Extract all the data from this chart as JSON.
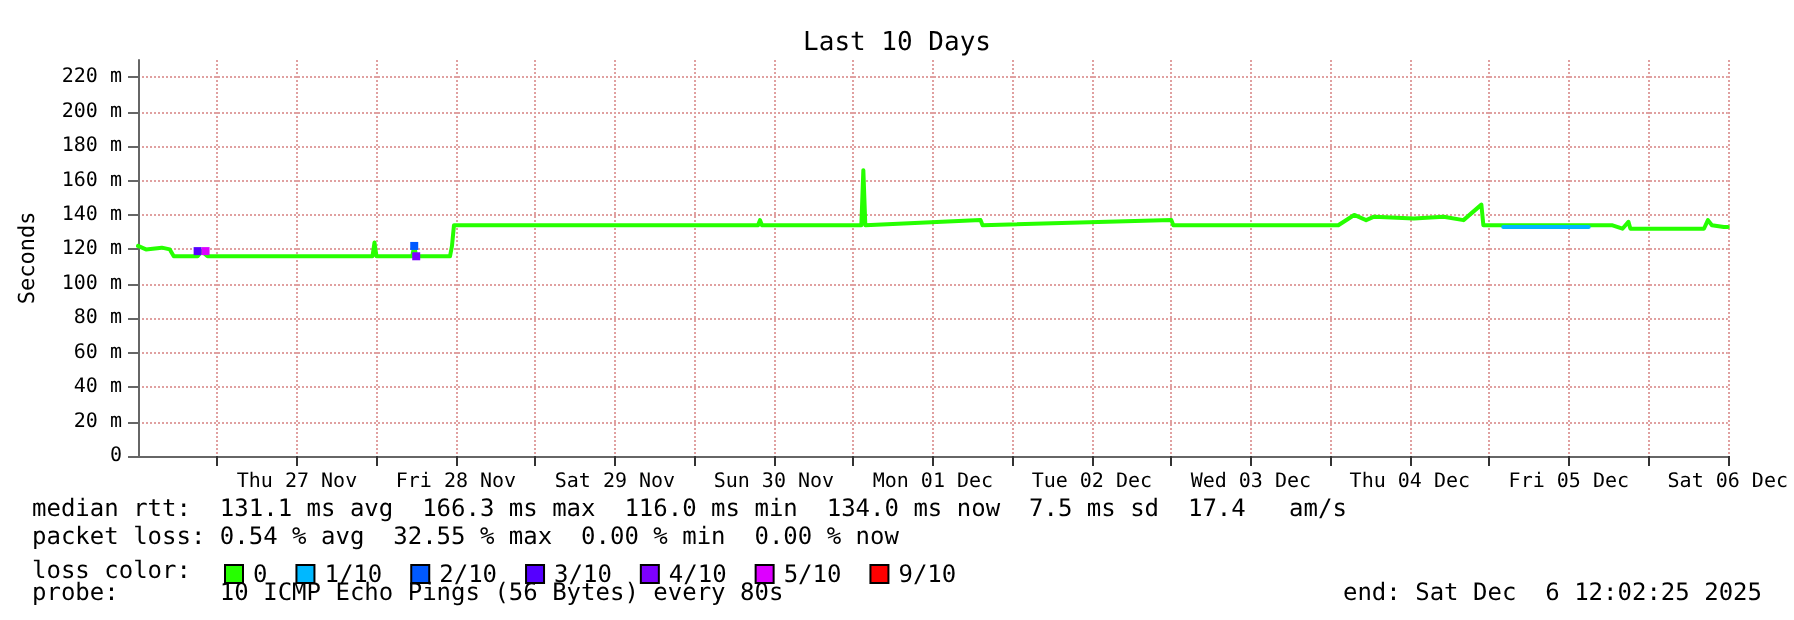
{
  "chart_data": {
    "type": "line",
    "title": "Last 10 Days",
    "ylabel": "Seconds",
    "legend_title": "loss color:",
    "xlim": [
      "2025-11-26T12:00",
      "2025-12-06T12:00"
    ],
    "xticks": [
      {
        "value": "2025-11-27T00:00",
        "label": null
      },
      {
        "value": "2025-11-27T12:00",
        "label": "Thu 27 Nov"
      },
      {
        "value": "2025-11-28T00:00",
        "label": null
      },
      {
        "value": "2025-11-28T12:00",
        "label": "Fri 28 Nov"
      },
      {
        "value": "2025-11-29T00:00",
        "label": null
      },
      {
        "value": "2025-11-29T12:00",
        "label": "Sat 29 Nov"
      },
      {
        "value": "2025-11-30T00:00",
        "label": null
      },
      {
        "value": "2025-11-30T12:00",
        "label": "Sun 30 Nov"
      },
      {
        "value": "2025-12-01T00:00",
        "label": null
      },
      {
        "value": "2025-12-01T12:00",
        "label": "Mon 01 Dec"
      },
      {
        "value": "2025-12-02T00:00",
        "label": null
      },
      {
        "value": "2025-12-02T12:00",
        "label": "Tue 02 Dec"
      },
      {
        "value": "2025-12-03T00:00",
        "label": null
      },
      {
        "value": "2025-12-03T12:00",
        "label": "Wed 03 Dec"
      },
      {
        "value": "2025-12-04T00:00",
        "label": null
      },
      {
        "value": "2025-12-04T12:00",
        "label": "Thu 04 Dec"
      },
      {
        "value": "2025-12-05T00:00",
        "label": null
      },
      {
        "value": "2025-12-05T12:00",
        "label": "Fri 05 Dec"
      },
      {
        "value": "2025-12-06T00:00",
        "label": null
      },
      {
        "value": "2025-12-06T12:00",
        "label": "Sat 06 Dec"
      }
    ],
    "ylim": [
      0,
      230
    ],
    "yticks": [
      0,
      {
        "value": 20,
        "label": "20 m"
      },
      {
        "value": 40,
        "label": "40 m"
      },
      {
        "value": 60,
        "label": "60 m"
      },
      {
        "value": 80,
        "label": "80 m"
      },
      {
        "value": 100,
        "label": "100 m"
      },
      {
        "value": 120,
        "label": "120 m"
      },
      {
        "value": 140,
        "label": "140 m"
      },
      {
        "value": 160,
        "label": "160 m"
      },
      {
        "value": 180,
        "label": "180 m"
      },
      {
        "value": 200,
        "label": "200 m"
      },
      {
        "value": 220,
        "label": "220 m"
      }
    ],
    "grid": true,
    "legend": "bottom left",
    "line_style": "solid",
    "series": [
      {
        "name": "0",
        "color": "#26ff00",
        "marker": "none",
        "x": [
          "2025-11-26T12:00",
          "2025-11-26T13:12",
          "2025-11-26T15:36",
          "2025-11-26T16:48",
          "2025-11-26T17:24",
          "2025-11-26T21:00",
          "2025-11-26T21:36",
          "2025-11-26T22:30",
          "2025-11-27T23:24",
          "2025-11-27T23:42",
          "2025-11-28T00:00",
          "2025-11-28T05:24",
          "2025-11-28T05:42",
          "2025-11-28T06:00",
          "2025-11-28T11:06",
          "2025-11-28T11:24",
          "2025-11-28T11:42",
          "2025-11-30T09:36",
          "2025-11-30T09:54",
          "2025-11-30T10:12",
          "2025-12-01T01:12",
          "2025-12-01T01:30",
          "2025-12-01T01:48",
          "2025-12-01T19:12",
          "2025-12-01T19:30",
          "2025-12-03T00:00",
          "2025-12-03T00:18",
          "2025-12-04T01:12",
          "2025-12-04T03:36",
          "2025-12-04T05:24",
          "2025-12-04T06:36",
          "2025-12-04T12:36",
          "2025-12-04T17:06",
          "2025-12-04T20:06",
          "2025-12-04T22:48",
          "2025-12-04T23:06",
          "2025-12-05T18:36",
          "2025-12-05T20:06",
          "2025-12-05T21:00",
          "2025-12-05T21:18",
          "2025-12-06T08:24",
          "2025-12-06T09:00",
          "2025-12-06T09:36",
          "2025-12-06T11:24",
          "2025-12-06T12:00"
        ],
        "values": [
          122,
          120,
          121,
          120,
          116,
          116,
          119,
          116,
          116,
          124,
          116,
          116,
          122,
          116,
          116,
          122,
          134,
          134,
          137,
          134,
          134,
          166,
          134,
          137,
          134,
          137,
          134,
          134,
          140,
          137,
          139,
          138,
          139,
          137,
          146,
          134,
          134,
          132,
          136,
          132,
          132,
          137,
          134,
          133,
          133
        ]
      },
      {
        "name": "1/10",
        "color": "#00b8ff",
        "marker": "none",
        "x": [
          "2025-12-05T02:06",
          "2025-12-05T15:00"
        ],
        "values": [
          133,
          133
        ]
      },
      {
        "name": "2/10",
        "color": "#0059ff",
        "marker": "square",
        "x": [
          "2025-11-28T05:42"
        ],
        "values": [
          122
        ]
      },
      {
        "name": "3/10",
        "color": "#5500ff",
        "marker": "square",
        "x": [
          "2025-11-26T21:00"
        ],
        "values": [
          119
        ]
      },
      {
        "name": "4/10",
        "color": "#7e00ff",
        "marker": "square",
        "x": [
          "2025-11-28T06:00"
        ],
        "values": [
          116
        ]
      },
      {
        "name": "5/10",
        "color": "#dd00ff",
        "marker": "square",
        "x": [
          "2025-11-26T22:12"
        ],
        "values": [
          119
        ]
      },
      {
        "name": "9/10",
        "color": "#ff0000",
        "marker": "square"
      }
    ],
    "annotations": [
      "median rtt:  131.1 ms avg  166.3 ms max  116.0 ms min  134.0 ms now  7.5 ms sd  17.4   am/s",
      "packet loss: 0.54 % avg  32.55 % max  0.00 % min  0.00 % now",
      "probe:       10 ICMP Echo Pings (56 Bytes) every 80s",
      "end: Sat Dec  6 12:02:25 2025"
    ]
  }
}
